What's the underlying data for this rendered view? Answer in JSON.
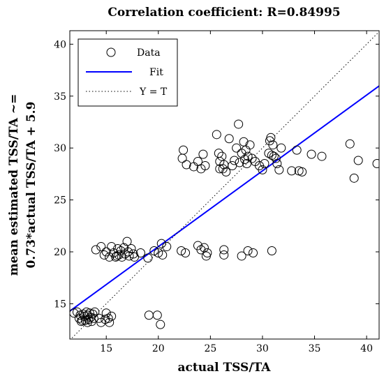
{
  "chart_data": {
    "type": "scatter",
    "title": "Correlation coefficient: R=0.84995",
    "xlabel": "actual TSS/TA",
    "ylabel_lines": [
      "mean estimated TSS/TA ~=",
      "0.73*actual TSS/TA + 5.9"
    ],
    "xlim": [
      11.5,
      41.2
    ],
    "ylim": [
      11.6,
      41.3
    ],
    "xticks": [
      15,
      20,
      25,
      30,
      35,
      40
    ],
    "yticks": [
      15,
      20,
      25,
      30,
      35,
      40
    ],
    "grid": false,
    "legend_position": "top-left",
    "series": [
      {
        "name": "Data",
        "marker": "circle",
        "color": "#000000",
        "points": [
          [
            11.9,
            14.1
          ],
          [
            12.2,
            14.2
          ],
          [
            12.4,
            13.6
          ],
          [
            12.5,
            13.9
          ],
          [
            12.6,
            13.3
          ],
          [
            12.8,
            14.0
          ],
          [
            12.9,
            13.8
          ],
          [
            13.0,
            13.4
          ],
          [
            13.1,
            14.2
          ],
          [
            13.2,
            13.9
          ],
          [
            13.3,
            13.5
          ],
          [
            13.4,
            14.1
          ],
          [
            13.5,
            13.7
          ],
          [
            13.6,
            13.3
          ],
          [
            13.7,
            14.0
          ],
          [
            13.8,
            13.6
          ],
          [
            13.9,
            14.2
          ],
          [
            12.7,
            13.4
          ],
          [
            13.2,
            13.2
          ],
          [
            14.3,
            13.6
          ],
          [
            14.5,
            13.2
          ],
          [
            14.9,
            13.5
          ],
          [
            15.0,
            14.1
          ],
          [
            15.2,
            13.6
          ],
          [
            15.3,
            13.2
          ],
          [
            15.5,
            13.8
          ],
          [
            19.1,
            13.9
          ],
          [
            19.9,
            13.9
          ],
          [
            20.2,
            13.0
          ],
          [
            14.0,
            20.2
          ],
          [
            14.5,
            20.5
          ],
          [
            14.8,
            19.7
          ],
          [
            15.0,
            20.0
          ],
          [
            15.3,
            19.5
          ],
          [
            15.5,
            20.5
          ],
          [
            15.7,
            19.9
          ],
          [
            15.9,
            19.5
          ],
          [
            16.1,
            20.3
          ],
          [
            16.2,
            19.7
          ],
          [
            16.4,
            20.1
          ],
          [
            16.5,
            19.5
          ],
          [
            16.7,
            20.4
          ],
          [
            16.8,
            19.8
          ],
          [
            17.0,
            21.0
          ],
          [
            17.1,
            20.0
          ],
          [
            17.2,
            19.6
          ],
          [
            17.4,
            20.3
          ],
          [
            17.6,
            19.8
          ],
          [
            17.7,
            19.5
          ],
          [
            16.0,
            19.6
          ],
          [
            18.3,
            19.9
          ],
          [
            19.0,
            19.4
          ],
          [
            19.6,
            20.1
          ],
          [
            20.0,
            19.9
          ],
          [
            20.3,
            20.8
          ],
          [
            20.8,
            20.5
          ],
          [
            20.4,
            19.7
          ],
          [
            22.2,
            20.1
          ],
          [
            22.6,
            19.9
          ],
          [
            23.8,
            20.6
          ],
          [
            24.1,
            20.2
          ],
          [
            24.4,
            20.4
          ],
          [
            24.6,
            19.6
          ],
          [
            24.7,
            19.9
          ],
          [
            26.3,
            20.2
          ],
          [
            26.3,
            19.7
          ],
          [
            28.0,
            19.6
          ],
          [
            28.6,
            20.1
          ],
          [
            29.1,
            19.9
          ],
          [
            30.9,
            20.1
          ],
          [
            22.3,
            29.0
          ],
          [
            22.4,
            29.8
          ],
          [
            22.7,
            28.4
          ],
          [
            23.4,
            28.2
          ],
          [
            23.8,
            28.7
          ],
          [
            24.1,
            28.0
          ],
          [
            24.3,
            29.4
          ],
          [
            24.5,
            28.3
          ],
          [
            25.6,
            31.3
          ],
          [
            25.8,
            29.5
          ],
          [
            25.9,
            28.7
          ],
          [
            26.1,
            29.2
          ],
          [
            26.2,
            28.0
          ],
          [
            26.3,
            28.4
          ],
          [
            26.5,
            27.7
          ],
          [
            25.9,
            28.0
          ],
          [
            26.8,
            30.9
          ],
          [
            27.1,
            28.3
          ],
          [
            27.3,
            28.8
          ],
          [
            27.5,
            30.0
          ],
          [
            27.7,
            32.3
          ],
          [
            27.8,
            28.6
          ],
          [
            28.0,
            29.5
          ],
          [
            28.2,
            30.6
          ],
          [
            28.3,
            28.9
          ],
          [
            28.4,
            29.8
          ],
          [
            28.5,
            28.5
          ],
          [
            28.6,
            29.2
          ],
          [
            28.8,
            30.3
          ],
          [
            29.0,
            29.0
          ],
          [
            29.3,
            28.7
          ],
          [
            29.7,
            28.3
          ],
          [
            30.0,
            27.9
          ],
          [
            30.2,
            28.5
          ],
          [
            30.6,
            29.5
          ],
          [
            30.7,
            30.7
          ],
          [
            30.8,
            31.0
          ],
          [
            30.9,
            29.3
          ],
          [
            31.0,
            30.3
          ],
          [
            31.1,
            29.2
          ],
          [
            31.3,
            29.0
          ],
          [
            31.4,
            28.5
          ],
          [
            31.6,
            27.9
          ],
          [
            31.8,
            30.0
          ],
          [
            32.8,
            27.8
          ],
          [
            33.3,
            29.8
          ],
          [
            33.5,
            27.8
          ],
          [
            33.8,
            27.7
          ],
          [
            34.7,
            29.4
          ],
          [
            35.7,
            29.2
          ],
          [
            38.4,
            30.4
          ],
          [
            38.8,
            27.1
          ],
          [
            39.2,
            28.8
          ],
          [
            41.0,
            28.5
          ]
        ]
      },
      {
        "name": "Fit",
        "type": "line",
        "color": "#0000ff",
        "slope": 0.73,
        "intercept": 5.9
      },
      {
        "name": "Y = T",
        "type": "line",
        "style": "dotted",
        "color": "#000000",
        "slope": 1,
        "intercept": 0
      }
    ]
  }
}
